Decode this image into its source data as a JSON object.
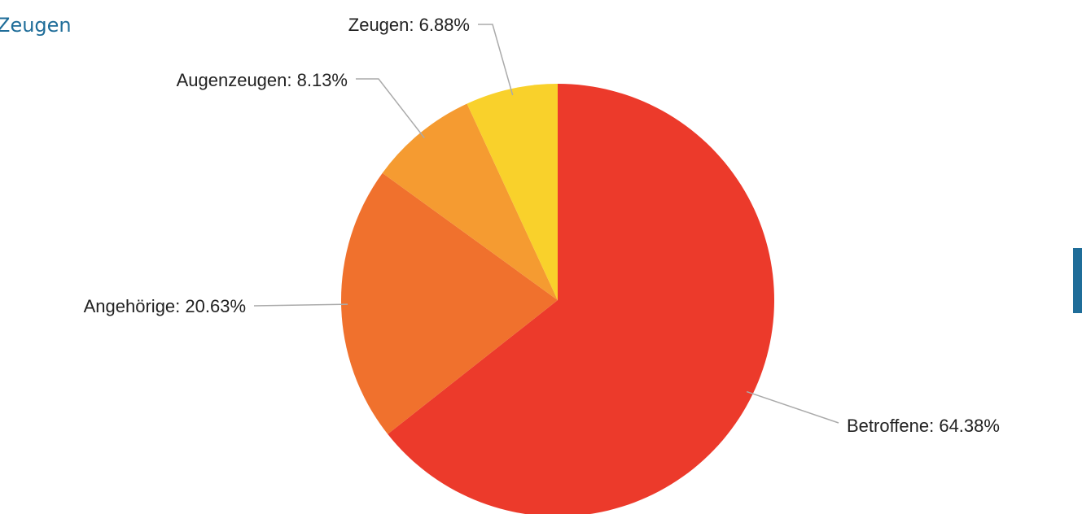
{
  "chart_data": {
    "type": "pie",
    "title": "Zeugen",
    "values": [
      64.38,
      20.63,
      8.13,
      6.88
    ],
    "value_labels": [
      "Betroffene: 64.38%",
      "Angehörige: 20.63%",
      "Augenzeugen: 8.13%",
      "Zeugen: 6.88%"
    ],
    "colors": [
      "#ec3a2b",
      "#f0712d",
      "#f59b31",
      "#f9d12b"
    ]
  }
}
